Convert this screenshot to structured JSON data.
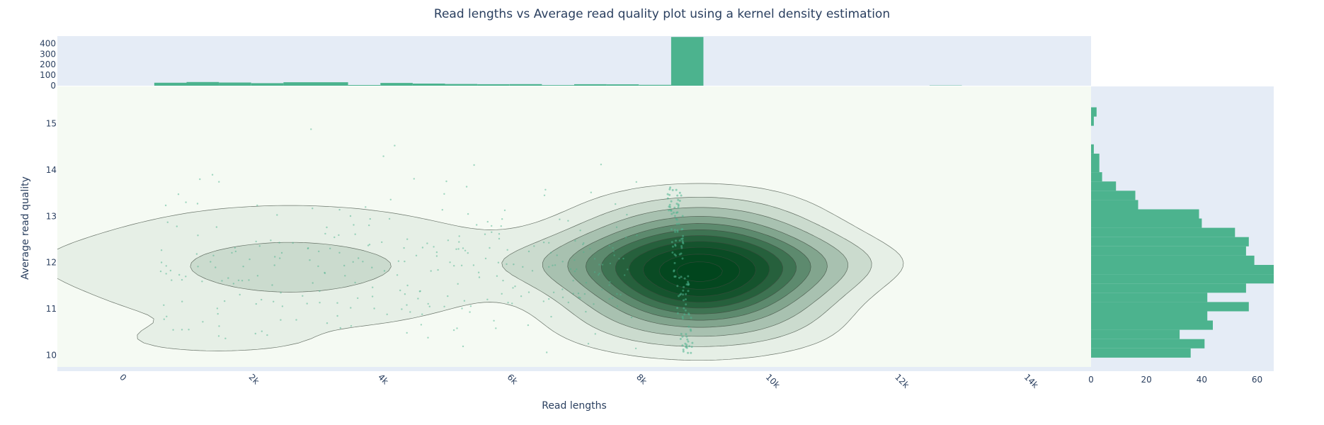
{
  "chart_data": {
    "type": "scatter",
    "title": "Read lengths vs Average read quality plot using a kernel density estimation",
    "xlabel": "Read lengths",
    "ylabel": "Average read quality",
    "xlim": [
      -1000,
      15000
    ],
    "ylim": [
      9.75,
      15.8
    ],
    "x_ticks": [
      0,
      2000,
      4000,
      6000,
      8000,
      10000,
      12000,
      14000
    ],
    "x_tick_labels": [
      "0",
      "2k",
      "4k",
      "6k",
      "8k",
      "10k",
      "12k",
      "14k"
    ],
    "y_ticks": [
      10,
      11,
      12,
      13,
      14,
      15
    ],
    "y_tick_labels": [
      "10",
      "11",
      "12",
      "13",
      "14",
      "15"
    ],
    "top_histogram": {
      "ylim": [
        0,
        470
      ],
      "y_ticks": [
        0,
        100,
        200,
        300,
        400
      ],
      "y_tick_labels": [
        "0",
        "100",
        "200",
        "300",
        "400"
      ],
      "bins": [
        {
          "x0": 500,
          "x1": 1000,
          "count": 28
        },
        {
          "x0": 1000,
          "x1": 1500,
          "count": 35
        },
        {
          "x0": 1500,
          "x1": 2000,
          "count": 30
        },
        {
          "x0": 2000,
          "x1": 2500,
          "count": 24
        },
        {
          "x0": 2500,
          "x1": 3000,
          "count": 33
        },
        {
          "x0": 3000,
          "x1": 3500,
          "count": 33
        },
        {
          "x0": 3500,
          "x1": 4000,
          "count": 7
        },
        {
          "x0": 4000,
          "x1": 4500,
          "count": 26
        },
        {
          "x0": 4500,
          "x1": 5000,
          "count": 20
        },
        {
          "x0": 5000,
          "x1": 5500,
          "count": 16
        },
        {
          "x0": 5500,
          "x1": 6000,
          "count": 14
        },
        {
          "x0": 6000,
          "x1": 6500,
          "count": 15
        },
        {
          "x0": 6500,
          "x1": 7000,
          "count": 6
        },
        {
          "x0": 7000,
          "x1": 7500,
          "count": 14
        },
        {
          "x0": 7500,
          "x1": 8000,
          "count": 13
        },
        {
          "x0": 8000,
          "x1": 8500,
          "count": 8
        },
        {
          "x0": 8500,
          "x1": 9000,
          "count": 462
        },
        {
          "x0": 12500,
          "x1": 13000,
          "count": 3
        }
      ]
    },
    "right_histogram": {
      "xlim": [
        0,
        66
      ],
      "x_ticks": [
        0,
        20,
        40,
        60
      ],
      "x_tick_labels": [
        "0",
        "20",
        "40",
        "60"
      ],
      "bins": [
        {
          "y0": 9.95,
          "y1": 10.15,
          "count": 36
        },
        {
          "y0": 10.15,
          "y1": 10.35,
          "count": 41
        },
        {
          "y0": 10.35,
          "y1": 10.55,
          "count": 32
        },
        {
          "y0": 10.55,
          "y1": 10.75,
          "count": 44
        },
        {
          "y0": 10.75,
          "y1": 10.95,
          "count": 42
        },
        {
          "y0": 10.95,
          "y1": 11.15,
          "count": 57
        },
        {
          "y0": 11.15,
          "y1": 11.35,
          "count": 42
        },
        {
          "y0": 11.35,
          "y1": 11.55,
          "count": 56
        },
        {
          "y0": 11.55,
          "y1": 11.75,
          "count": 66
        },
        {
          "y0": 11.75,
          "y1": 11.95,
          "count": 66
        },
        {
          "y0": 11.95,
          "y1": 12.15,
          "count": 59
        },
        {
          "y0": 12.15,
          "y1": 12.35,
          "count": 56
        },
        {
          "y0": 12.35,
          "y1": 12.55,
          "count": 57
        },
        {
          "y0": 12.55,
          "y1": 12.75,
          "count": 52
        },
        {
          "y0": 12.75,
          "y1": 12.95,
          "count": 40
        },
        {
          "y0": 12.95,
          "y1": 13.15,
          "count": 39
        },
        {
          "y0": 13.15,
          "y1": 13.35,
          "count": 17
        },
        {
          "y0": 13.35,
          "y1": 13.55,
          "count": 16
        },
        {
          "y0": 13.55,
          "y1": 13.75,
          "count": 9
        },
        {
          "y0": 13.75,
          "y1": 13.95,
          "count": 4
        },
        {
          "y0": 13.95,
          "y1": 14.15,
          "count": 3
        },
        {
          "y0": 14.15,
          "y1": 14.35,
          "count": 3
        },
        {
          "y0": 14.35,
          "y1": 14.55,
          "count": 1
        },
        {
          "y0": 14.95,
          "y1": 15.15,
          "count": 1
        },
        {
          "y0": 15.15,
          "y1": 15.35,
          "count": 2
        }
      ]
    },
    "kde_modes": [
      {
        "x": 8950,
        "y": 11.8,
        "sx": 1150,
        "sy": 0.75,
        "w": 1.0
      },
      {
        "x": 2600,
        "y": 11.9,
        "sx": 2400,
        "sy": 0.9,
        "w": 0.12
      },
      {
        "x": 1400,
        "y": 10.35,
        "sx": 900,
        "sy": 0.22,
        "w": 0.05
      }
    ],
    "kde_levels": [
      0.04,
      0.1,
      0.18,
      0.28,
      0.38,
      0.48,
      0.58,
      0.68,
      0.78,
      0.88,
      0.96
    ],
    "points_seed": 7,
    "points_spread_count": 300,
    "points_stripe_count": 120,
    "colors": {
      "bar": "#4cb38e",
      "point": "#4cb38e",
      "kde_fill": "#00441b",
      "kde_line": "#3d4a3d",
      "plot_bg_main": "#f5faf3",
      "plot_bg_marginal": "#e5ecf6",
      "grid": "#ffffff",
      "text": "#2a3f5f"
    }
  }
}
